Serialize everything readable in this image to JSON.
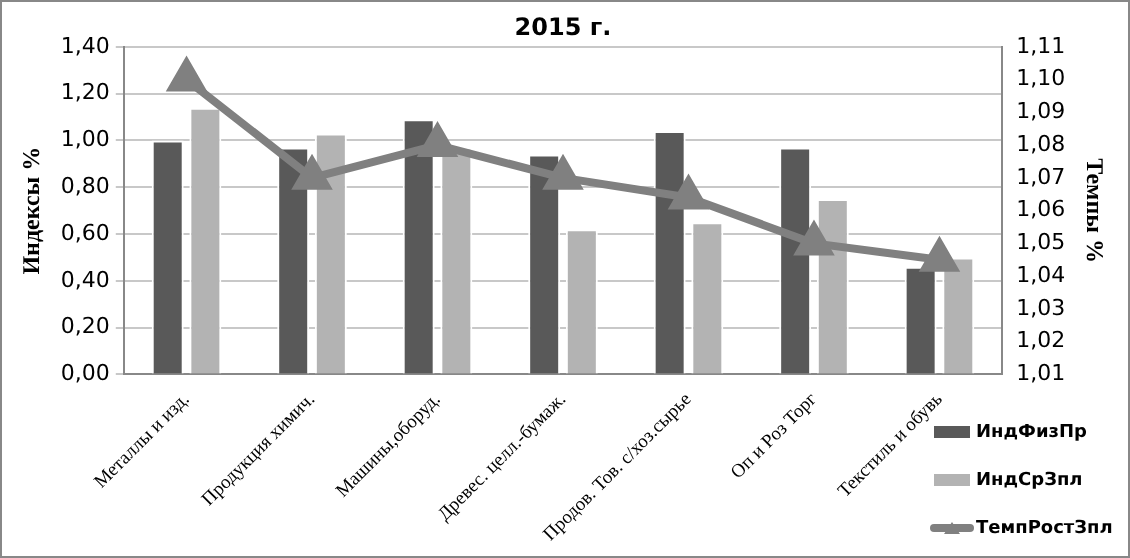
{
  "chart_data": {
    "type": "bar",
    "title": "2015 г.",
    "ylabel": "Индексы %",
    "y2label": "Темпы %",
    "categories": [
      "Металлы и изд.",
      "Продукция химич.",
      "Машины,оборуд.",
      "Древес. целл.-бумаж.",
      "Продов. Тов. с/хоз.сырье",
      "Оп и Роз Торг",
      "Текстиль и обувь"
    ],
    "series": [
      {
        "name": "ИндФизПр",
        "color": "#595959",
        "values": [
          1.0,
          0.97,
          1.09,
          0.94,
          1.04,
          0.97,
          0.46
        ]
      },
      {
        "name": "ИндСрЗпл",
        "color": "#b3b3b3",
        "values": [
          1.14,
          1.03,
          0.97,
          0.62,
          0.65,
          0.75,
          0.5
        ]
      },
      {
        "name": "ТемпРостЗпл",
        "type": "line",
        "axis": "y2",
        "color": "#808080",
        "marker": "triangle",
        "values": [
          1.1,
          1.07,
          1.08,
          1.07,
          1.064,
          1.05,
          1.045
        ]
      }
    ],
    "ylim": [
      0,
      1.4
    ],
    "yticks": [
      {
        "value": 0,
        "label": "0,00"
      },
      {
        "value": 0.2,
        "label": "0,20"
      },
      {
        "value": 0.4,
        "label": "0,40"
      },
      {
        "value": 0.6,
        "label": "0,60"
      },
      {
        "value": 0.8,
        "label": "0,80"
      },
      {
        "value": 1.0,
        "label": "1,00"
      },
      {
        "value": 1.2,
        "label": "1,20"
      },
      {
        "value": 1.4,
        "label": "1,40"
      }
    ],
    "y2lim": [
      1.01,
      1.11
    ],
    "y2ticks": [
      {
        "value": 1.01,
        "label": "1,01"
      },
      {
        "value": 1.02,
        "label": "1,02"
      },
      {
        "value": 1.03,
        "label": "1,03"
      },
      {
        "value": 1.04,
        "label": "1,04"
      },
      {
        "value": 1.05,
        "label": "1,05"
      },
      {
        "value": 1.06,
        "label": "1,06"
      },
      {
        "value": 1.07,
        "label": "1,07"
      },
      {
        "value": 1.08,
        "label": "1,08"
      },
      {
        "value": 1.09,
        "label": "1,09"
      },
      {
        "value": 1.1,
        "label": "1,10"
      },
      {
        "value": 1.11,
        "label": "1,11"
      }
    ],
    "grid": "y",
    "legend": "bottom right"
  }
}
